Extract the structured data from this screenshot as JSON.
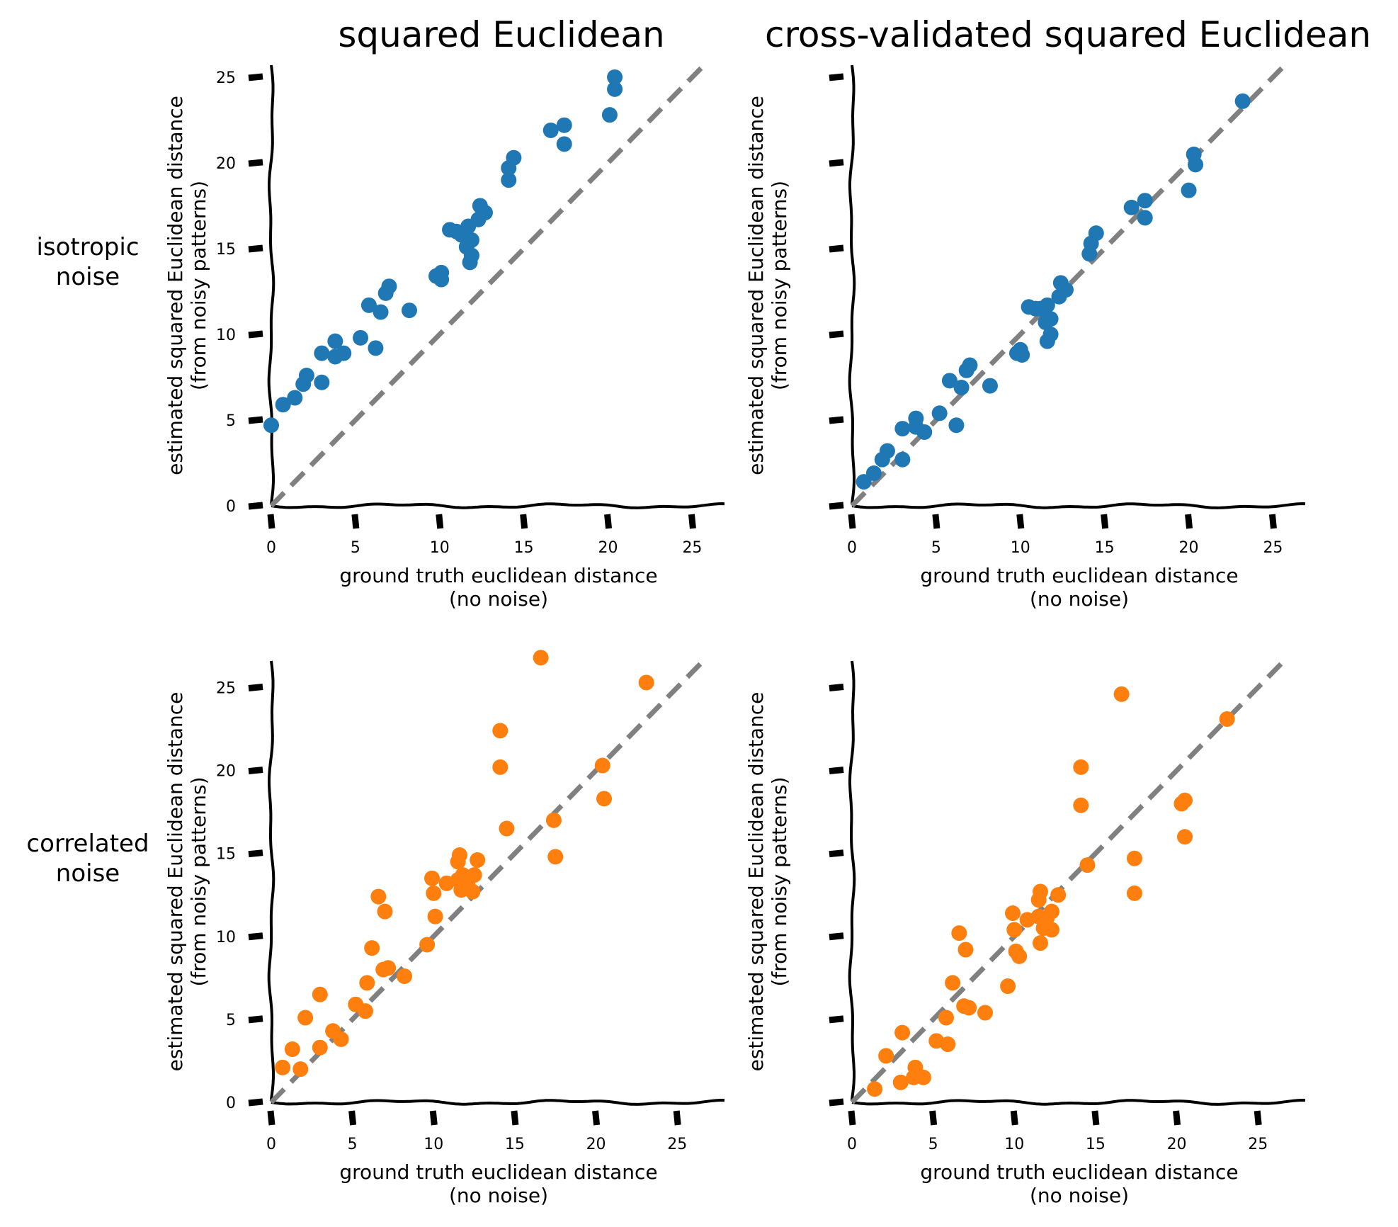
{
  "column_titles": [
    "squared Euclidean",
    "cross-validated squared Euclidean"
  ],
  "row_labels": [
    [
      "isotropic",
      "noise"
    ],
    [
      "correlated",
      "noise"
    ]
  ],
  "colors": {
    "isotropic": "#1f77b4",
    "correlated": "#ff7f0e",
    "identity_line": "#808080",
    "axis": "#000000"
  },
  "chart_data": [
    {
      "type": "scatter",
      "title": "squared Euclidean",
      "xlabel": [
        "ground truth euclidean distance",
        "(no noise)"
      ],
      "ylabel": [
        "estimated squared Euclidean distance",
        "(from noisy patterns)"
      ],
      "xlim": [
        0,
        27
      ],
      "ylim": [
        0,
        25.7
      ],
      "xticks": [
        0,
        5,
        10,
        15,
        20,
        25
      ],
      "yticks": [
        0,
        5,
        10,
        15,
        20,
        25
      ],
      "yticklabels_shown": true,
      "grid": false,
      "identity_line": true,
      "color": "#1f77b4",
      "points": [
        [
          0,
          4.7
        ],
        [
          0.7,
          5.9
        ],
        [
          1.4,
          6.3
        ],
        [
          1.9,
          7.1
        ],
        [
          2.1,
          7.6
        ],
        [
          3.0,
          8.9
        ],
        [
          3.0,
          7.2
        ],
        [
          3.8,
          8.7
        ],
        [
          3.8,
          9.6
        ],
        [
          4.3,
          8.9
        ],
        [
          5.3,
          9.8
        ],
        [
          5.8,
          11.7
        ],
        [
          6.2,
          9.2
        ],
        [
          6.5,
          11.3
        ],
        [
          6.8,
          12.4
        ],
        [
          7.0,
          12.8
        ],
        [
          8.2,
          11.4
        ],
        [
          9.8,
          13.4
        ],
        [
          10.1,
          13.6
        ],
        [
          10.1,
          13.2
        ],
        [
          10.6,
          16.1
        ],
        [
          11.0,
          16.0
        ],
        [
          11.3,
          15.8
        ],
        [
          11.6,
          15.1
        ],
        [
          11.7,
          16.3
        ],
        [
          11.8,
          14.2
        ],
        [
          11.9,
          14.6
        ],
        [
          11.9,
          15.5
        ],
        [
          12.3,
          16.7
        ],
        [
          12.4,
          17.5
        ],
        [
          12.7,
          17.1
        ],
        [
          14.1,
          19.0
        ],
        [
          14.1,
          19.7
        ],
        [
          14.4,
          20.3
        ],
        [
          16.6,
          21.9
        ],
        [
          17.4,
          22.2
        ],
        [
          17.4,
          21.1
        ],
        [
          20.1,
          22.8
        ],
        [
          20.4,
          24.3
        ],
        [
          20.4,
          25.0
        ]
      ]
    },
    {
      "type": "scatter",
      "title": "cross-validated squared Euclidean",
      "xlabel": [
        "ground truth euclidean distance",
        "(no noise)"
      ],
      "ylabel": [
        "estimated squared Euclidean distance",
        "(from noisy patterns)"
      ],
      "xlim": [
        0,
        27
      ],
      "ylim": [
        0,
        25.7
      ],
      "xticks": [
        0,
        5,
        10,
        15,
        20,
        25
      ],
      "yticks": [
        0,
        5,
        10,
        15,
        20,
        25
      ],
      "yticklabels_shown": false,
      "grid": false,
      "identity_line": true,
      "color": "#1f77b4",
      "points": [
        [
          0.7,
          1.4
        ],
        [
          1.3,
          1.9
        ],
        [
          1.8,
          2.7
        ],
        [
          2.1,
          3.2
        ],
        [
          3.0,
          2.7
        ],
        [
          3.0,
          4.5
        ],
        [
          3.8,
          4.6
        ],
        [
          3.8,
          5.1
        ],
        [
          4.3,
          4.3
        ],
        [
          5.2,
          5.4
        ],
        [
          5.8,
          7.3
        ],
        [
          6.2,
          4.7
        ],
        [
          6.5,
          6.9
        ],
        [
          6.8,
          7.9
        ],
        [
          7.0,
          8.2
        ],
        [
          8.2,
          7.0
        ],
        [
          9.8,
          8.9
        ],
        [
          10.0,
          9.1
        ],
        [
          10.1,
          8.8
        ],
        [
          10.5,
          11.6
        ],
        [
          10.9,
          11.5
        ],
        [
          11.2,
          11.5
        ],
        [
          11.5,
          10.7
        ],
        [
          11.6,
          11.7
        ],
        [
          11.6,
          9.6
        ],
        [
          11.8,
          10.0
        ],
        [
          11.8,
          10.9
        ],
        [
          12.3,
          12.2
        ],
        [
          12.4,
          13.0
        ],
        [
          12.7,
          12.6
        ],
        [
          14.1,
          14.7
        ],
        [
          14.2,
          15.3
        ],
        [
          14.5,
          15.9
        ],
        [
          16.6,
          17.4
        ],
        [
          17.4,
          17.8
        ],
        [
          17.4,
          16.8
        ],
        [
          20.0,
          18.4
        ],
        [
          20.3,
          20.5
        ],
        [
          20.4,
          19.9
        ],
        [
          23.2,
          23.6
        ]
      ]
    },
    {
      "type": "scatter",
      "title": "",
      "xlabel": [
        "ground truth euclidean distance",
        "(no noise)"
      ],
      "ylabel": [
        "estimated squared Euclidean distance",
        "(from noisy patterns)"
      ],
      "xlim": [
        0,
        28
      ],
      "ylim": [
        0,
        26.6
      ],
      "xticks": [
        0,
        5,
        10,
        15,
        20,
        25
      ],
      "yticks": [
        0,
        5,
        10,
        15,
        20,
        25
      ],
      "yticklabels_shown": true,
      "grid": false,
      "identity_line": true,
      "color": "#ff7f0e",
      "points": [
        [
          0.7,
          2.1
        ],
        [
          1.3,
          3.2
        ],
        [
          1.8,
          2.0
        ],
        [
          2.1,
          5.1
        ],
        [
          3.0,
          3.3
        ],
        [
          3.0,
          6.5
        ],
        [
          3.8,
          4.3
        ],
        [
          4.3,
          3.8
        ],
        [
          5.2,
          5.9
        ],
        [
          5.8,
          5.5
        ],
        [
          5.9,
          7.2
        ],
        [
          6.2,
          9.3
        ],
        [
          6.6,
          12.4
        ],
        [
          6.9,
          8.0
        ],
        [
          7.0,
          11.5
        ],
        [
          7.2,
          8.1
        ],
        [
          8.2,
          7.6
        ],
        [
          9.6,
          9.5
        ],
        [
          9.9,
          13.5
        ],
        [
          10.0,
          12.6
        ],
        [
          10.1,
          11.2
        ],
        [
          10.8,
          13.2
        ],
        [
          11.5,
          13.4
        ],
        [
          11.5,
          14.5
        ],
        [
          11.6,
          14.9
        ],
        [
          11.7,
          12.8
        ],
        [
          11.8,
          13.7
        ],
        [
          12.1,
          13.3
        ],
        [
          12.4,
          12.7
        ],
        [
          12.5,
          13.7
        ],
        [
          12.7,
          14.6
        ],
        [
          14.1,
          20.2
        ],
        [
          14.1,
          22.4
        ],
        [
          14.5,
          16.5
        ],
        [
          16.6,
          26.8
        ],
        [
          17.4,
          17.0
        ],
        [
          17.5,
          14.8
        ],
        [
          20.4,
          20.3
        ],
        [
          20.5,
          18.3
        ],
        [
          23.1,
          25.3
        ]
      ]
    },
    {
      "type": "scatter",
      "title": "",
      "xlabel": [
        "ground truth euclidean distance",
        "(no noise)"
      ],
      "ylabel": [
        "estimated squared Euclidean distance",
        "(from noisy patterns)"
      ],
      "xlim": [
        0,
        28
      ],
      "ylim": [
        0,
        26.6
      ],
      "xticks": [
        0,
        5,
        10,
        15,
        20,
        25
      ],
      "yticks": [
        0,
        5,
        10,
        15,
        20,
        25
      ],
      "yticklabels_shown": false,
      "grid": false,
      "identity_line": true,
      "color": "#ff7f0e",
      "points": [
        [
          1.4,
          0.8
        ],
        [
          2.1,
          2.8
        ],
        [
          3.0,
          1.2
        ],
        [
          3.1,
          4.2
        ],
        [
          3.8,
          1.5
        ],
        [
          3.9,
          2.1
        ],
        [
          4.4,
          1.5
        ],
        [
          5.2,
          3.7
        ],
        [
          5.8,
          5.1
        ],
        [
          5.9,
          3.5
        ],
        [
          6.2,
          7.2
        ],
        [
          6.6,
          10.2
        ],
        [
          6.9,
          5.8
        ],
        [
          7.0,
          9.2
        ],
        [
          7.2,
          5.7
        ],
        [
          8.2,
          5.4
        ],
        [
          9.6,
          7.0
        ],
        [
          9.9,
          11.4
        ],
        [
          10.0,
          10.4
        ],
        [
          10.1,
          9.1
        ],
        [
          10.3,
          8.8
        ],
        [
          10.8,
          11.0
        ],
        [
          11.5,
          11.2
        ],
        [
          11.5,
          12.2
        ],
        [
          11.6,
          12.7
        ],
        [
          11.6,
          9.6
        ],
        [
          11.8,
          10.5
        ],
        [
          12.0,
          11.1
        ],
        [
          12.3,
          10.4
        ],
        [
          12.3,
          11.5
        ],
        [
          12.7,
          12.5
        ],
        [
          14.1,
          17.9
        ],
        [
          14.1,
          20.2
        ],
        [
          14.5,
          14.3
        ],
        [
          16.6,
          24.6
        ],
        [
          17.4,
          14.7
        ],
        [
          17.4,
          12.6
        ],
        [
          20.3,
          18.0
        ],
        [
          20.5,
          16.0
        ],
        [
          20.5,
          18.2
        ],
        [
          23.1,
          23.1
        ]
      ]
    }
  ]
}
